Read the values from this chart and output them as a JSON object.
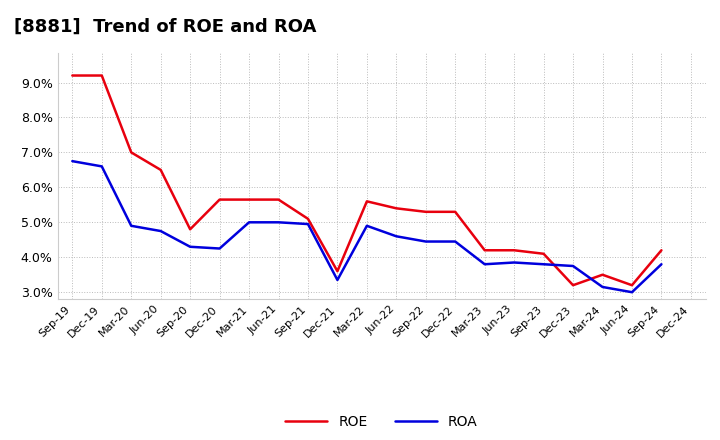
{
  "title": "[8881]  Trend of ROE and ROA",
  "labels": [
    "Sep-19",
    "Dec-19",
    "Mar-20",
    "Jun-20",
    "Sep-20",
    "Dec-20",
    "Mar-21",
    "Jun-21",
    "Sep-21",
    "Dec-21",
    "Mar-22",
    "Jun-22",
    "Sep-22",
    "Dec-22",
    "Mar-23",
    "Jun-23",
    "Sep-23",
    "Dec-23",
    "Mar-24",
    "Jun-24",
    "Sep-24",
    "Dec-24"
  ],
  "ROE": [
    9.2,
    9.2,
    7.0,
    6.5,
    4.8,
    5.65,
    5.65,
    5.65,
    5.1,
    3.6,
    5.6,
    5.4,
    5.3,
    5.3,
    4.2,
    4.2,
    4.1,
    3.2,
    3.5,
    3.2,
    4.2,
    null
  ],
  "ROA": [
    6.75,
    6.6,
    4.9,
    4.75,
    4.3,
    4.25,
    5.0,
    5.0,
    4.95,
    3.35,
    4.9,
    4.6,
    4.45,
    4.45,
    3.8,
    3.85,
    3.8,
    3.75,
    3.15,
    3.0,
    3.8,
    null
  ],
  "roe_color": "#e8000e",
  "roa_color": "#0000dd",
  "bg_color": "#ffffff",
  "plot_bg_color": "#ffffff",
  "grid_color": "#bbbbbb",
  "ylim": [
    2.8,
    9.85
  ],
  "yticks": [
    3.0,
    4.0,
    5.0,
    6.0,
    7.0,
    8.0,
    9.0
  ],
  "line_width": 1.8,
  "title_fontsize": 13,
  "tick_fontsize": 8,
  "legend_fontsize": 10
}
